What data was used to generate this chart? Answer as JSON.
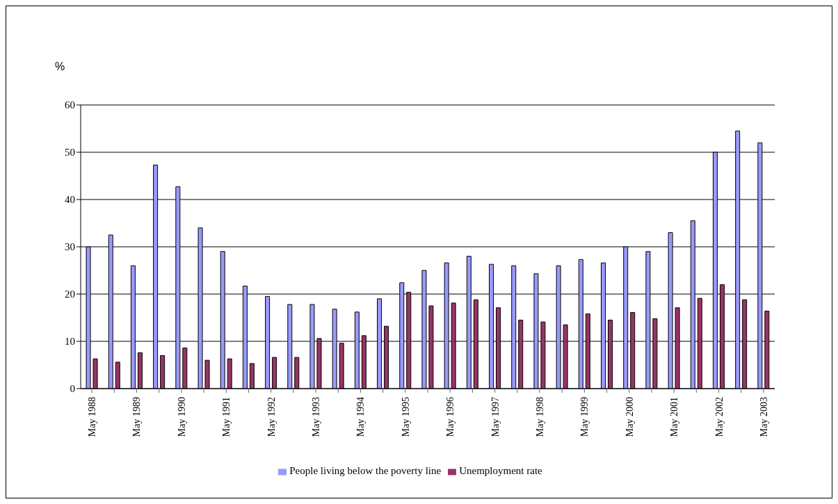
{
  "chart_data": {
    "type": "bar",
    "ylabel": "%",
    "categories": [
      "May 1988",
      null,
      "May 1989",
      null,
      "May 1990",
      null,
      "May 1991",
      null,
      "May 1992",
      null,
      "May 1993",
      null,
      "May 1994",
      null,
      "May 1995",
      null,
      "May 1996",
      null,
      "May 1997",
      null,
      "May 1998",
      null,
      "May 1999",
      null,
      "May 2000",
      null,
      "May 2001",
      null,
      "May 2002",
      null,
      "May 2003"
    ],
    "series": [
      {
        "name": "People living below the  poverty line",
        "color": "#9999ff",
        "values": [
          30,
          32.5,
          26,
          47.3,
          42.7,
          34,
          29,
          21.7,
          19.5,
          17.8,
          17.8,
          16.8,
          16.2,
          19,
          22.4,
          25,
          26.6,
          28,
          26.3,
          26,
          24.3,
          26,
          27.3,
          26.6,
          30,
          29,
          33,
          35.5,
          50,
          54.5,
          52
        ]
      },
      {
        "name": "Unemployment rate",
        "color": "#993366",
        "values": [
          6.3,
          5.6,
          7.6,
          7,
          8.6,
          6,
          6.3,
          5.3,
          6.6,
          6.6,
          10.6,
          9.6,
          11.2,
          13.2,
          20.4,
          17.5,
          18.1,
          18.8,
          17.1,
          14.5,
          14.1,
          13.5,
          15.8,
          14.5,
          16.1,
          14.8,
          17.1,
          19.1,
          22,
          18.8,
          16.4
        ]
      }
    ],
    "ylim": [
      0,
      60
    ],
    "yticks": [
      0,
      10,
      20,
      30,
      40,
      50,
      60
    ],
    "grid": "y",
    "legend": "bottom"
  }
}
